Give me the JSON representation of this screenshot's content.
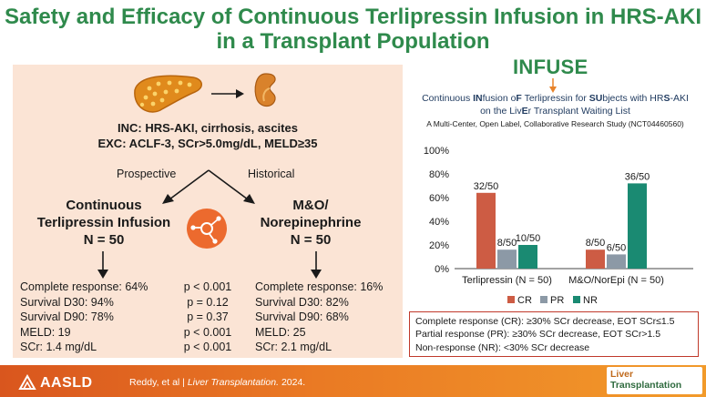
{
  "title": {
    "line1": "Safety and Efficacy of Continuous Terlipressin Infusion in HRS-AKI",
    "line2": "in a Transplant Population"
  },
  "left": {
    "inclusion": "INC: HRS-AKI, cirrhosis, ascites",
    "exclusion": "EXC: ACLF-3, SCr>5.0mg/dL, MELD≥35",
    "prospective_label": "Prospective",
    "historical_label": "Historical",
    "arm1": {
      "line1": "Continuous",
      "line2": "Terlipressin Infusion",
      "n": "N = 50"
    },
    "arm2": {
      "line1": "M&O/",
      "line2": "Norepinephrine",
      "n": "N = 50"
    },
    "arm1_results": [
      "Complete response: 64%",
      "Survival D30: 94%",
      "Survival D90: 78%",
      "MELD: 19",
      "SCr: 1.4 mg/dL"
    ],
    "pvalues": [
      "p < 0.001",
      "p = 0.12",
      "p = 0.37",
      "p < 0.001",
      "p < 0.001"
    ],
    "arm2_results": [
      "Complete response: 16%",
      "Survival D30: 82%",
      "Survival D90: 68%",
      "MELD: 25",
      "SCr: 2.1 mg/dL"
    ]
  },
  "infuse": {
    "acronym": "INFUSE",
    "expansion_line1_parts": [
      "Continuous ",
      "IN",
      "fusion o",
      "F",
      " Terlipressin for ",
      "SU",
      "bjects with HR",
      "S",
      "-AKI"
    ],
    "expansion_line2_parts": [
      "on the Liv",
      "E",
      "r Transplant Waiting List"
    ],
    "study": "A Multi-Center, Open Label, Collaborative Research Study (NCT04460560)"
  },
  "chart_data": {
    "type": "bar",
    "categories": [
      "Terlipressin (N = 50)",
      "M&O/NorEpi (N = 50)"
    ],
    "series": [
      {
        "name": "CR",
        "values": [
          64,
          16
        ],
        "labels": [
          "32/50",
          "8/50"
        ],
        "color": "#cd5c44"
      },
      {
        "name": "PR",
        "values": [
          16,
          12
        ],
        "labels": [
          "8/50",
          "6/50"
        ],
        "color": "#8c99a6"
      },
      {
        "name": "NR",
        "values": [
          20,
          72
        ],
        "labels": [
          "10/50",
          "36/50"
        ],
        "color": "#1a8a72"
      }
    ],
    "yticks": [
      "0%",
      "20%",
      "40%",
      "60%",
      "80%",
      "100%"
    ],
    "ylim": [
      0,
      100
    ],
    "grid": false,
    "legend_position": "bottom"
  },
  "definitions": [
    "Complete response (CR): ≥30% SCr decrease, EOT SCr≤1.5",
    "Partial response (PR): ≥30% SCr decrease, EOT SCr>1.5",
    "Non-response (NR): <30% SCr decrease"
  ],
  "footer": {
    "org": "AASLD",
    "citation_authors": "Reddy, et al  |  ",
    "citation_journal": "Liver Transplantation.",
    "citation_year": " 2024.",
    "journal_logo_line1": "Liver",
    "journal_logo_line2": "Transplantation"
  },
  "colors": {
    "title_green": "#2f8a4c",
    "panel_bg": "#fbe4d5",
    "cr": "#cd5c44",
    "pr": "#8c99a6",
    "nr": "#1a8a72"
  }
}
